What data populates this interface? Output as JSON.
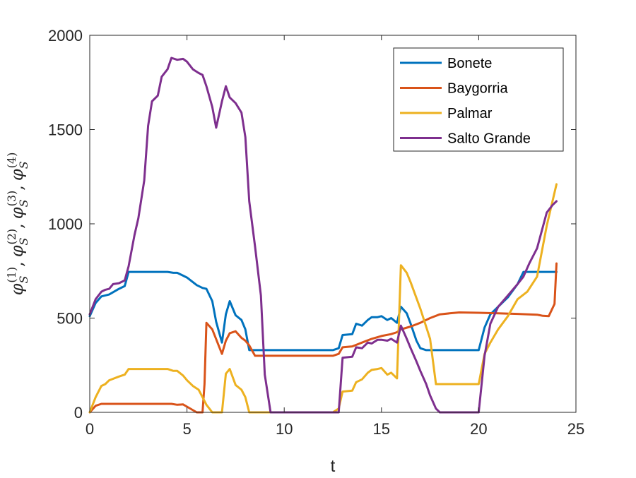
{
  "chart_data": {
    "type": "line",
    "xlabel": "t",
    "ylabel": "φS(1), φS(2), φS(3), φS(4)",
    "ylabel_parts": {
      "symbol": "φ",
      "sub": "S",
      "sups": [
        "(1)",
        "(2)",
        "(3)",
        "(4)"
      ],
      "sep": ","
    },
    "xlim": [
      0,
      25
    ],
    "ylim": [
      0,
      2000
    ],
    "xticks": [
      0,
      5,
      10,
      15,
      20,
      25
    ],
    "yticks": [
      0,
      500,
      1000,
      1500,
      2000
    ],
    "xtick_labels": [
      "0",
      "5",
      "10",
      "15",
      "20",
      "25"
    ],
    "ytick_labels": [
      "0",
      "500",
      "1000",
      "1500",
      "2000"
    ],
    "grid": false,
    "legend_position": "top-right",
    "series": [
      {
        "name": "Bonete",
        "color": "#0072BD",
        "x": [
          0,
          0.3,
          0.6,
          1.0,
          1.5,
          1.8,
          2.0,
          2.5,
          3.0,
          3.5,
          4.0,
          4.3,
          4.5,
          4.8,
          5.0,
          5.5,
          5.8,
          6.0,
          6.3,
          6.5,
          6.8,
          7.0,
          7.2,
          7.5,
          7.8,
          8.0,
          8.2,
          9.0,
          10.0,
          11.0,
          12.0,
          12.5,
          12.8,
          13.0,
          13.5,
          13.7,
          14.0,
          14.3,
          14.5,
          14.8,
          15.0,
          15.3,
          15.5,
          15.8,
          16.0,
          16.3,
          16.5,
          16.8,
          17.0,
          17.3,
          17.7,
          18.0,
          19.0,
          20.0,
          20.3,
          20.6,
          21.0,
          21.5,
          22.0,
          22.3,
          23.0,
          24.0
        ],
        "y": [
          510,
          580,
          615,
          625,
          655,
          670,
          745,
          745,
          745,
          745,
          745,
          740,
          740,
          725,
          715,
          675,
          660,
          655,
          590,
          480,
          370,
          520,
          590,
          515,
          490,
          440,
          330,
          330,
          330,
          330,
          330,
          330,
          340,
          410,
          415,
          470,
          460,
          490,
          505,
          505,
          510,
          490,
          500,
          475,
          560,
          525,
          470,
          380,
          340,
          330,
          330,
          330,
          330,
          330,
          450,
          520,
          560,
          610,
          680,
          745,
          745,
          745
        ]
      },
      {
        "name": "Baygorria",
        "color": "#D95319",
        "x": [
          0,
          0.3,
          0.6,
          1.0,
          2.0,
          3.0,
          4.0,
          4.2,
          4.5,
          4.8,
          5.0,
          5.5,
          5.8,
          5.9,
          6.0,
          6.3,
          6.8,
          7.0,
          7.2,
          7.5,
          7.8,
          8.0,
          8.2,
          8.5,
          9.0,
          10.0,
          11.0,
          12.0,
          12.5,
          12.8,
          13.0,
          13.5,
          14.0,
          14.5,
          15.0,
          15.5,
          15.8,
          16.0,
          16.5,
          17.0,
          17.5,
          18.0,
          18.5,
          19.0,
          20.0,
          21.0,
          22.0,
          23.0,
          23.3,
          23.6,
          23.9,
          24.0
        ],
        "y": [
          0,
          35,
          45,
          45,
          45,
          45,
          45,
          45,
          40,
          42,
          30,
          0,
          0,
          150,
          475,
          440,
          310,
          380,
          420,
          430,
          395,
          380,
          355,
          300,
          300,
          300,
          300,
          300,
          300,
          310,
          345,
          350,
          370,
          390,
          405,
          415,
          425,
          440,
          455,
          475,
          500,
          520,
          525,
          530,
          528,
          525,
          522,
          518,
          512,
          510,
          575,
          790
        ]
      },
      {
        "name": "Palmar",
        "color": "#EDB120",
        "x": [
          0,
          0.3,
          0.6,
          0.8,
          1.0,
          1.5,
          1.8,
          2.0,
          2.5,
          3.0,
          3.5,
          4.0,
          4.3,
          4.5,
          4.8,
          5.0,
          5.3,
          5.6,
          5.8,
          6.0,
          6.3,
          6.5,
          6.8,
          7.0,
          7.2,
          7.5,
          7.8,
          8.0,
          8.2,
          9.0,
          9.3,
          9.5,
          10.0,
          11.0,
          12.0,
          12.5,
          12.8,
          13.0,
          13.5,
          13.7,
          14.0,
          14.3,
          14.5,
          14.8,
          15.0,
          15.3,
          15.5,
          15.8,
          16.0,
          16.3,
          16.5,
          17.0,
          17.5,
          17.8,
          18.0,
          19.0,
          20.0,
          20.3,
          20.6,
          21.0,
          21.5,
          22.0,
          22.5,
          23.0,
          23.5,
          24.0
        ],
        "y": [
          0,
          80,
          140,
          150,
          170,
          190,
          200,
          230,
          230,
          230,
          230,
          230,
          220,
          220,
          195,
          170,
          140,
          120,
          80,
          40,
          0,
          0,
          0,
          205,
          230,
          145,
          120,
          80,
          0,
          0,
          0,
          0,
          0,
          0,
          0,
          0,
          20,
          110,
          115,
          160,
          175,
          210,
          225,
          230,
          235,
          200,
          210,
          180,
          780,
          740,
          690,
          550,
          390,
          150,
          150,
          150,
          150,
          310,
          370,
          440,
          510,
          600,
          640,
          720,
          990,
          1210
        ]
      },
      {
        "name": "Salto Grande",
        "color": "#7E2F8E",
        "x": [
          0,
          0.3,
          0.6,
          0.8,
          1.0,
          1.2,
          1.5,
          1.8,
          2.0,
          2.3,
          2.5,
          2.8,
          3.0,
          3.2,
          3.5,
          3.7,
          4.0,
          4.2,
          4.5,
          4.8,
          5.0,
          5.3,
          5.6,
          5.8,
          6.0,
          6.3,
          6.5,
          6.8,
          7.0,
          7.2,
          7.5,
          7.8,
          8.0,
          8.2,
          8.5,
          8.8,
          9.0,
          9.3,
          9.5,
          10.0,
          11.0,
          12.0,
          12.5,
          12.8,
          13.0,
          13.5,
          13.7,
          14.0,
          14.3,
          14.5,
          14.8,
          15.0,
          15.3,
          15.5,
          15.8,
          16.0,
          16.3,
          16.5,
          16.8,
          17.0,
          17.3,
          17.5,
          17.8,
          18.0,
          19.0,
          20.0,
          20.3,
          20.6,
          21.0,
          21.5,
          22.0,
          22.3,
          22.6,
          23.0,
          23.5,
          23.8,
          24.0
        ],
        "y": [
          520,
          600,
          640,
          650,
          655,
          680,
          685,
          700,
          775,
          940,
          1030,
          1230,
          1520,
          1650,
          1680,
          1780,
          1820,
          1880,
          1870,
          1875,
          1860,
          1820,
          1800,
          1790,
          1730,
          1620,
          1510,
          1650,
          1730,
          1670,
          1640,
          1590,
          1460,
          1120,
          880,
          620,
          200,
          0,
          0,
          0,
          0,
          0,
          0,
          0,
          290,
          295,
          345,
          340,
          370,
          365,
          385,
          385,
          380,
          390,
          370,
          460,
          390,
          340,
          270,
          220,
          150,
          90,
          20,
          0,
          0,
          0,
          300,
          470,
          560,
          620,
          680,
          720,
          790,
          870,
          1060,
          1100,
          1120
        ]
      }
    ]
  }
}
